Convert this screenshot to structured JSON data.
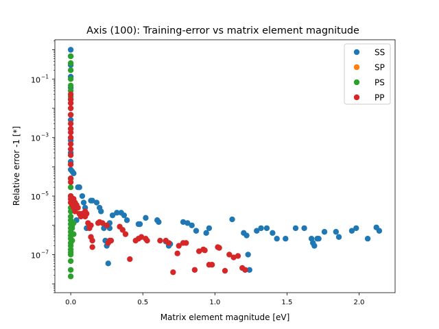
{
  "chart_data": {
    "type": "scatter",
    "title": "Axis (100): Training-error vs matrix element magnitude",
    "xlabel": "Matrix element magnitude [eV]",
    "ylabel": "Relative error -1 [*]",
    "x_scale": "linear",
    "y_scale": "log",
    "xlim": [
      -0.11,
      2.25
    ],
    "ylim": [
      5e-09,
      2.2
    ],
    "xticks": [
      0.0,
      0.5,
      1.0,
      1.5,
      2.0
    ],
    "xtick_labels": [
      "0.0",
      "0.5",
      "1.0",
      "1.5",
      "2.0"
    ],
    "yticks": [
      1e-07,
      1e-05,
      0.001,
      0.1
    ],
    "ytick_labels": [
      "10",
      "10",
      "10",
      "10"
    ],
    "ytick_exponents": [
      "−7",
      "−5",
      "−3",
      "−1"
    ],
    "grid": false,
    "legend_position": "upper right",
    "series": [
      {
        "name": "SS",
        "color": "#1f77b4",
        "points": [
          [
            0.0,
            1.0
          ],
          [
            0.0,
            0.6
          ],
          [
            0.0,
            0.3
          ],
          [
            0.0,
            0.12
          ],
          [
            0.0,
            0.05
          ],
          [
            0.0,
            0.02
          ],
          [
            0.0,
            0.006
          ],
          [
            0.0,
            0.004
          ],
          [
            0.0,
            0.002
          ],
          [
            0.0,
            0.0008
          ],
          [
            0.0,
            0.0003
          ],
          [
            0.0,
            0.00015
          ],
          [
            0.0,
            8e-05
          ],
          [
            0.0,
            4e-05
          ],
          [
            0.01,
            7e-05
          ],
          [
            0.02,
            6e-05
          ],
          [
            0.04,
            1.5e-06
          ],
          [
            0.05,
            2e-05
          ],
          [
            0.06,
            2e-05
          ],
          [
            0.08,
            1e-05
          ],
          [
            0.09,
            6e-06
          ],
          [
            0.1,
            4e-06
          ],
          [
            0.11,
            8e-07
          ],
          [
            0.14,
            7e-06
          ],
          [
            0.15,
            7e-06
          ],
          [
            0.18,
            6e-06
          ],
          [
            0.2,
            4e-06
          ],
          [
            0.21,
            3e-06
          ],
          [
            0.23,
            8e-07
          ],
          [
            0.24,
            3e-07
          ],
          [
            0.25,
            2e-07
          ],
          [
            0.26,
            5e-08
          ],
          [
            0.27,
            8e-07
          ],
          [
            0.27,
            1.2e-06
          ],
          [
            0.29,
            2.2e-06
          ],
          [
            0.32,
            2.7e-06
          ],
          [
            0.35,
            2.7e-06
          ],
          [
            0.37,
            2.2e-06
          ],
          [
            0.39,
            1.5e-06
          ],
          [
            0.47,
            1.1e-06
          ],
          [
            0.48,
            1.1e-06
          ],
          [
            0.52,
            1.8e-06
          ],
          [
            0.6,
            1.5e-06
          ],
          [
            0.61,
            1.3e-06
          ],
          [
            0.66,
            2.8e-07
          ],
          [
            0.68,
            2e-07
          ],
          [
            0.69,
            2.3e-07
          ],
          [
            0.78,
            1.3e-06
          ],
          [
            0.81,
            1.2e-06
          ],
          [
            0.84,
            1e-06
          ],
          [
            0.87,
            6.5e-07
          ],
          [
            0.94,
            5.5e-07
          ],
          [
            0.96,
            8e-07
          ],
          [
            1.12,
            1.6e-06
          ],
          [
            1.2,
            5.5e-07
          ],
          [
            1.22,
            4.5e-07
          ],
          [
            1.23,
            1e-07
          ],
          [
            1.24,
            3e-08
          ],
          [
            1.29,
            6.5e-07
          ],
          [
            1.32,
            8e-07
          ],
          [
            1.36,
            8e-07
          ],
          [
            1.4,
            5.5e-07
          ],
          [
            1.43,
            3.5e-07
          ],
          [
            1.49,
            3.5e-07
          ],
          [
            1.56,
            8e-07
          ],
          [
            1.62,
            8e-07
          ],
          [
            1.67,
            3.5e-07
          ],
          [
            1.68,
            2.5e-07
          ],
          [
            1.69,
            2e-07
          ],
          [
            1.71,
            3.5e-07
          ],
          [
            1.72,
            3.5e-07
          ],
          [
            1.76,
            6e-07
          ],
          [
            1.84,
            6e-07
          ],
          [
            1.86,
            4e-07
          ],
          [
            1.95,
            6.5e-07
          ],
          [
            1.98,
            8e-07
          ],
          [
            2.06,
            3.5e-07
          ],
          [
            2.12,
            8.5e-07
          ],
          [
            2.14,
            6.5e-07
          ]
        ]
      },
      {
        "name": "SP",
        "color": "#ff7f0e",
        "points": []
      },
      {
        "name": "PS",
        "color": "#2ca02c",
        "points": [
          [
            0.0,
            0.6
          ],
          [
            0.0,
            0.35
          ],
          [
            0.0,
            0.2
          ],
          [
            0.0,
            0.1
          ],
          [
            0.0,
            0.06
          ],
          [
            0.0,
            0.04
          ],
          [
            0.0,
            0.025
          ],
          [
            0.0,
            4e-05
          ],
          [
            0.0,
            2e-05
          ],
          [
            0.0,
            1e-05
          ],
          [
            0.0,
            6e-06
          ],
          [
            0.0,
            4e-06
          ],
          [
            0.0,
            3e-06
          ],
          [
            0.0,
            2e-06
          ],
          [
            0.0,
            1.5e-06
          ],
          [
            0.0,
            1.1e-06
          ],
          [
            0.0,
            8e-07
          ],
          [
            0.0,
            6e-07
          ],
          [
            0.0,
            4.5e-07
          ],
          [
            0.0,
            3.5e-07
          ],
          [
            0.0,
            2.5e-07
          ],
          [
            0.0,
            2e-07
          ],
          [
            0.0,
            1.5e-07
          ],
          [
            0.0,
            1.2e-07
          ],
          [
            0.0,
            1e-07
          ],
          [
            0.0,
            6e-08
          ],
          [
            0.0,
            3e-08
          ],
          [
            0.0,
            1.8e-08
          ],
          [
            0.01,
            8e-07
          ],
          [
            0.01,
            3e-07
          ],
          [
            0.01,
            1e-06
          ],
          [
            0.02,
            5e-07
          ],
          [
            0.02,
            1.2e-06
          ]
        ]
      },
      {
        "name": "PP",
        "color": "#d62728",
        "points": [
          [
            0.0,
            0.03
          ],
          [
            0.0,
            0.02
          ],
          [
            0.0,
            0.015
          ],
          [
            0.0,
            0.01
          ],
          [
            0.0,
            0.006
          ],
          [
            0.0,
            0.003
          ],
          [
            0.0,
            0.002
          ],
          [
            0.0,
            0.0015
          ],
          [
            0.0,
            0.001
          ],
          [
            0.0,
            0.0006
          ],
          [
            0.0,
            0.0004
          ],
          [
            0.0,
            0.00025
          ],
          [
            0.0,
            0.00012
          ],
          [
            0.0,
            4e-05
          ],
          [
            0.0,
            3e-05
          ],
          [
            0.0,
            1e-05
          ],
          [
            0.0,
            8e-06
          ],
          [
            0.0,
            6e-06
          ],
          [
            0.01,
            7e-06
          ],
          [
            0.01,
            5e-06
          ],
          [
            0.02,
            8e-06
          ],
          [
            0.02,
            4e-06
          ],
          [
            0.03,
            6e-06
          ],
          [
            0.03,
            3e-06
          ],
          [
            0.04,
            5e-06
          ],
          [
            0.05,
            4e-06
          ],
          [
            0.06,
            2.5e-06
          ],
          [
            0.07,
            2e-06
          ],
          [
            0.08,
            2.5e-06
          ],
          [
            0.1,
            3e-06
          ],
          [
            0.1,
            2e-06
          ],
          [
            0.11,
            2.5e-06
          ],
          [
            0.12,
            1.2e-06
          ],
          [
            0.13,
            8e-07
          ],
          [
            0.14,
            1e-06
          ],
          [
            0.14,
            4e-07
          ],
          [
            0.15,
            3e-07
          ],
          [
            0.15,
            1.8e-07
          ],
          [
            0.19,
            1.2e-06
          ],
          [
            0.2,
            1.3e-06
          ],
          [
            0.22,
            1.2e-06
          ],
          [
            0.25,
            1e-06
          ],
          [
            0.26,
            2.5e-07
          ],
          [
            0.27,
            3e-07
          ],
          [
            0.28,
            3e-07
          ],
          [
            0.34,
            9e-07
          ],
          [
            0.36,
            7e-07
          ],
          [
            0.38,
            5e-07
          ],
          [
            0.41,
            7e-08
          ],
          [
            0.45,
            3e-07
          ],
          [
            0.47,
            3.5e-07
          ],
          [
            0.49,
            4e-07
          ],
          [
            0.52,
            3.5e-07
          ],
          [
            0.53,
            3e-07
          ],
          [
            0.62,
            3e-07
          ],
          [
            0.66,
            3e-07
          ],
          [
            0.68,
            2.5e-07
          ],
          [
            0.71,
            2.5e-08
          ],
          [
            0.74,
            1.1e-07
          ],
          [
            0.75,
            2e-07
          ],
          [
            0.78,
            2.5e-07
          ],
          [
            0.8,
            2.5e-07
          ],
          [
            0.86,
            3e-08
          ],
          [
            0.89,
            1.3e-07
          ],
          [
            0.92,
            1.5e-07
          ],
          [
            0.93,
            1.4e-07
          ],
          [
            0.96,
            4.5e-08
          ],
          [
            0.98,
            4.5e-08
          ],
          [
            1.02,
            1.8e-07
          ],
          [
            1.03,
            1.7e-07
          ],
          [
            1.07,
            2.8e-08
          ],
          [
            1.1,
            1e-07
          ],
          [
            1.13,
            8e-08
          ],
          [
            1.16,
            9e-08
          ],
          [
            1.19,
            3.5e-08
          ],
          [
            1.21,
            3e-08
          ]
        ]
      }
    ]
  }
}
